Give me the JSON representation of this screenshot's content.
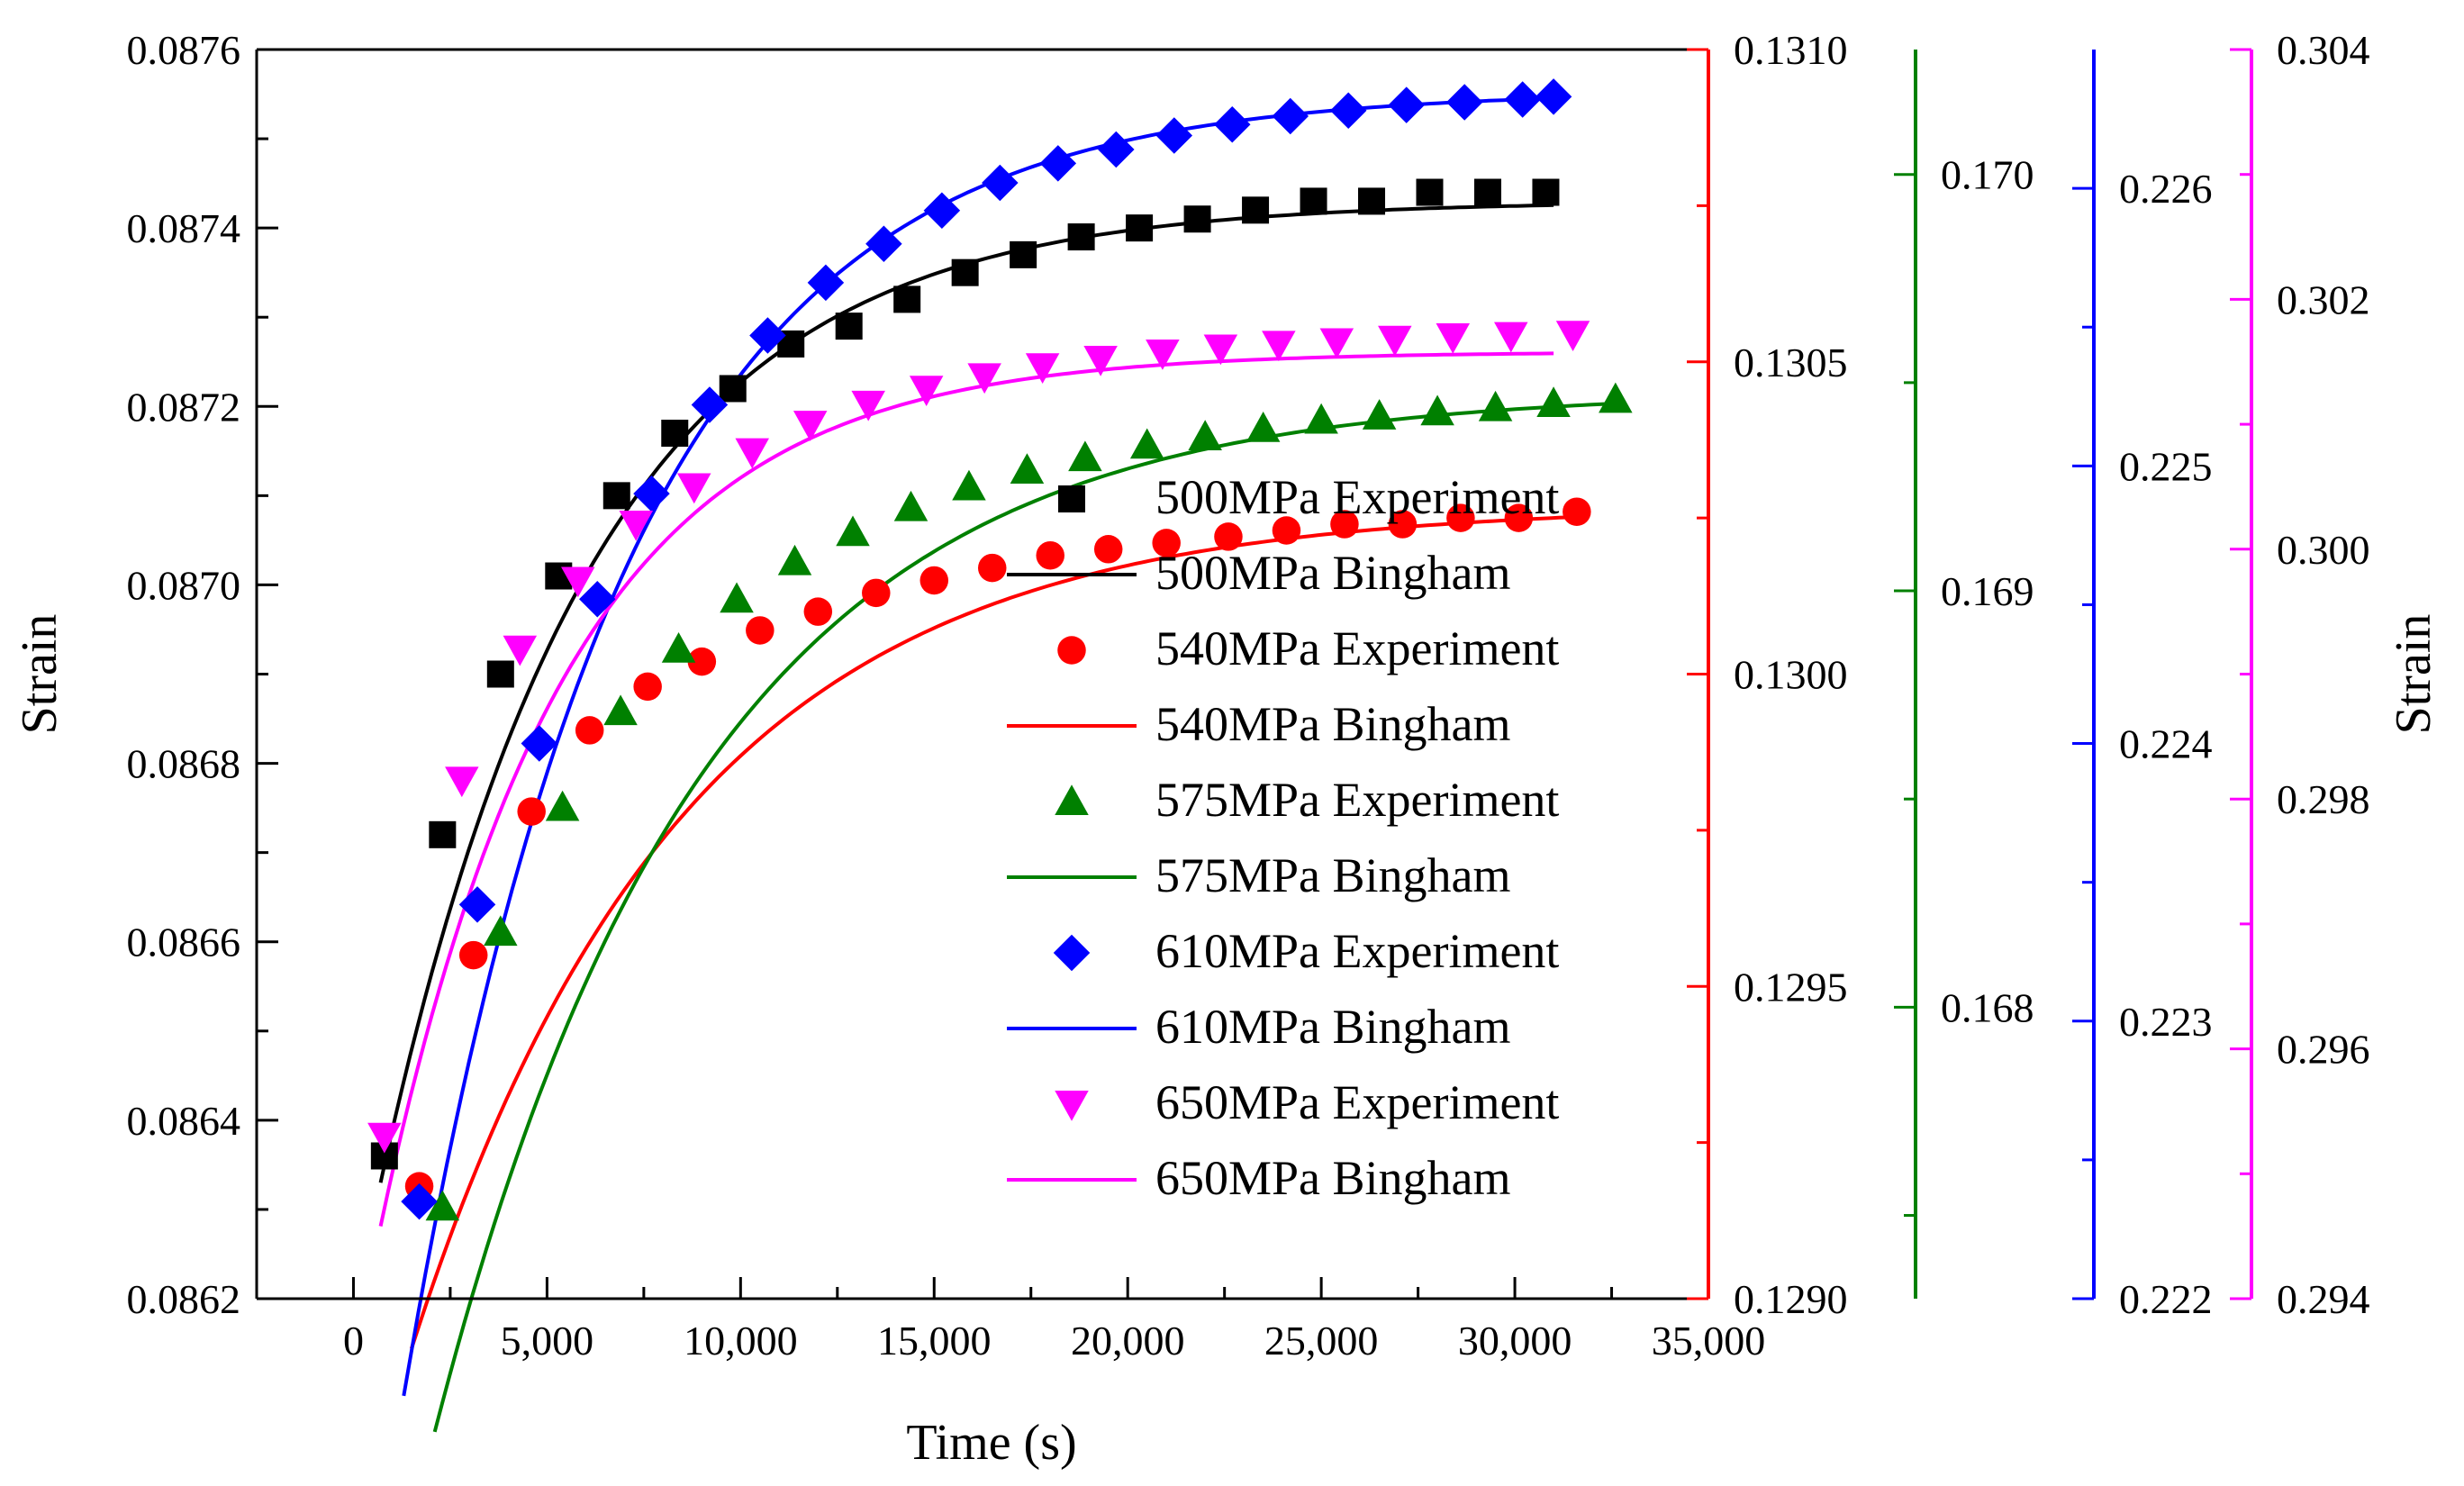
{
  "chart_data": {
    "type": "scatter",
    "xlabel": "Time (s)",
    "xlim": [
      -2500,
      35000
    ],
    "xticks": [
      0,
      5000,
      10000,
      15000,
      20000,
      25000,
      30000,
      35000
    ],
    "xtick_labels": [
      "0",
      "5,000",
      "10,000",
      "15,000",
      "20,000",
      "25,000",
      "30,000",
      "35,000"
    ],
    "left_axis": {
      "label": "Strain",
      "ylim": [
        0.0862,
        0.0876
      ],
      "ticks": [
        0.0862,
        0.0864,
        0.0866,
        0.0868,
        0.087,
        0.0872,
        0.0874,
        0.0876
      ],
      "tick_labels": [
        "0.0862",
        "0.0864",
        "0.0866",
        "0.0868",
        "0.0870",
        "0.0872",
        "0.0874",
        "0.0876"
      ],
      "color": "#000000"
    },
    "right_axes": [
      {
        "name": "540MPa axis",
        "color": "#ff0000",
        "ylim": [
          0.129,
          0.131
        ],
        "ticks": [
          0.129,
          0.1295,
          0.13,
          0.1305,
          0.131
        ],
        "tick_labels": [
          "0.1290",
          "0.1295",
          "0.1300",
          "0.1305",
          "0.1310"
        ],
        "label": ""
      },
      {
        "name": "575MPa axis",
        "color": "#008000",
        "ylim": [
          0.1673,
          0.1703
        ],
        "ticks": [
          0.168,
          0.169,
          0.17
        ],
        "tick_labels": [
          "0.168",
          "0.169",
          "0.170"
        ],
        "label": ""
      },
      {
        "name": "610MPa axis",
        "color": "#0000ff",
        "ylim": [
          0.222,
          0.2265
        ],
        "ticks": [
          0.222,
          0.223,
          0.224,
          0.225,
          0.226
        ],
        "tick_labels": [
          "0.222",
          "0.223",
          "0.224",
          "0.225",
          "0.226"
        ],
        "label": ""
      },
      {
        "name": "650MPa axis",
        "color": "#ff00ff",
        "ylim": [
          0.294,
          0.304
        ],
        "ticks": [
          0.294,
          0.296,
          0.298,
          0.3,
          0.302,
          0.304
        ],
        "tick_labels": [
          "0.294",
          "0.296",
          "0.298",
          "0.300",
          "0.302",
          "0.304"
        ],
        "label": "Strain"
      }
    ],
    "series": [
      {
        "name": "500MPa Experiment",
        "fit_name": "500MPa Bingham",
        "color": "#000000",
        "marker": "square",
        "axis": -1,
        "x": [
          800,
          2300,
          3800,
          5300,
          6800,
          8300,
          9800,
          11300,
          12800,
          14300,
          15800,
          17300,
          18800,
          20300,
          21800,
          23300,
          24800,
          26300,
          27800,
          29300,
          30800
        ],
        "y": [
          0.08636,
          0.08672,
          0.0869,
          0.08701,
          0.0871,
          0.08717,
          0.08722,
          0.08727,
          0.08729,
          0.08732,
          0.08735,
          0.08737,
          0.08739,
          0.0874,
          0.08741,
          0.08742,
          0.08743,
          0.08743,
          0.08744,
          0.08744,
          0.08744
        ],
        "fit": {
          "A": 0.08743,
          "B": 0.0011,
          "tau": 5500,
          "x0": 700,
          "x1": 31000
        }
      },
      {
        "name": "540MPa Experiment",
        "fit_name": "540MPa Bingham",
        "color": "#ff0000",
        "marker": "circle",
        "axis": 0,
        "x": [
          1700,
          3100,
          4600,
          6100,
          7600,
          9000,
          10500,
          12000,
          13500,
          15000,
          16500,
          18000,
          19500,
          21000,
          22600,
          24100,
          25600,
          27100,
          28600,
          30100,
          31600
        ],
        "y": [
          0.12918,
          0.12955,
          0.12978,
          0.12991,
          0.12998,
          0.13002,
          0.13007,
          0.1301,
          0.13013,
          0.13015,
          0.13017,
          0.13019,
          0.1302,
          0.13021,
          0.13022,
          0.13023,
          0.13024,
          0.13024,
          0.13025,
          0.13025,
          0.13026
        ],
        "fit": {
          "A": 0.13027,
          "B": 0.00135,
          "tau": 7000,
          "x0": 1500,
          "x1": 31700
        }
      },
      {
        "name": "575MPa Experiment",
        "fit_name": "575MPa Bingham",
        "color": "#008000",
        "marker": "triangle-up",
        "axis": 1,
        "x": [
          2300,
          3800,
          5400,
          6900,
          8400,
          9900,
          11400,
          12900,
          14400,
          15900,
          17400,
          18900,
          20500,
          22000,
          23500,
          25000,
          26500,
          28000,
          29500,
          31000,
          32600
        ],
        "y": [
          0.16752,
          0.16818,
          0.16848,
          0.16871,
          0.16886,
          0.16898,
          0.16907,
          0.16914,
          0.1692,
          0.16925,
          0.16929,
          0.16932,
          0.16935,
          0.16937,
          0.16939,
          0.16941,
          0.16942,
          0.16943,
          0.16944,
          0.16945,
          0.16946
        ],
        "fit": {
          "A": 0.16948,
          "B": 0.0025,
          "tau": 6900,
          "x0": 2100,
          "x1": 32700
        }
      },
      {
        "name": "610MPa Experiment",
        "fit_name": "610MPa Bingham",
        "color": "#0000ff",
        "marker": "diamond",
        "axis": 2,
        "x": [
          1700,
          3200,
          4800,
          6300,
          7700,
          9200,
          10700,
          12200,
          13700,
          15200,
          16700,
          18200,
          19700,
          21200,
          22700,
          24200,
          25700,
          27200,
          28700,
          30200,
          31000
        ],
        "y": [
          0.22235,
          0.22342,
          0.224,
          0.22452,
          0.2249,
          0.22522,
          0.22547,
          0.22566,
          0.2258,
          0.22592,
          0.22602,
          0.22609,
          0.22614,
          0.22619,
          0.22623,
          0.22626,
          0.22628,
          0.2263,
          0.22631,
          0.22632,
          0.22633
        ],
        "fit": {
          "A": 0.22635,
          "B": 0.0047,
          "tau": 5700,
          "x0": 1300,
          "x1": 31200
        }
      },
      {
        "name": "650MPa Experiment",
        "fit_name": "650MPa Bingham",
        "color": "#ff00ff",
        "marker": "triangle-down",
        "axis": 3,
        "x": [
          800,
          2800,
          4300,
          5800,
          7300,
          8800,
          10300,
          11800,
          13300,
          14800,
          16300,
          17800,
          19300,
          20900,
          22400,
          23900,
          25400,
          26900,
          28400,
          29900,
          31500
        ],
        "y": [
          0.2953,
          0.29815,
          0.2992,
          0.29975,
          0.3002,
          0.3005,
          0.30078,
          0.301,
          0.30116,
          0.30128,
          0.30138,
          0.30146,
          0.30152,
          0.30157,
          0.30161,
          0.30164,
          0.30166,
          0.30168,
          0.3017,
          0.30171,
          0.30172
        ],
        "fit": {
          "A": 0.30158,
          "B": 0.007,
          "tau": 4800,
          "x0": 700,
          "x1": 31000
        }
      }
    ]
  }
}
